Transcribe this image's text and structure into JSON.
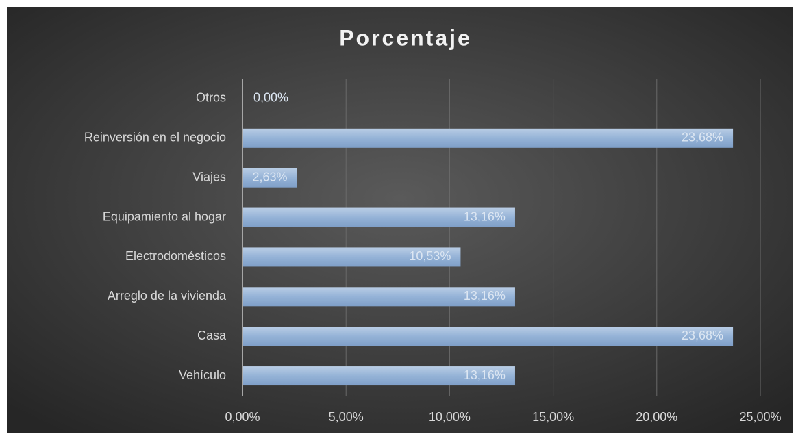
{
  "chart_data": {
    "type": "bar",
    "orientation": "horizontal",
    "title": "Porcentaje",
    "categories": [
      "Otros",
      "Reinversión en el negocio",
      "Viajes",
      "Equipamiento al hogar",
      "Electrodomésticos",
      "Arreglo de la vivienda",
      "Casa",
      "Vehículo"
    ],
    "values": [
      0,
      23.68,
      2.63,
      13.16,
      10.53,
      13.16,
      23.68,
      13.16
    ],
    "value_labels": [
      "0,00%",
      "23,68%",
      "2,63%",
      "13,16%",
      "10,53%",
      "13,16%",
      "23,68%",
      "13,16%"
    ],
    "color": "#95b3d7",
    "xlim": [
      0,
      25
    ],
    "xticks": [
      {
        "value": 0,
        "label": "0,00%"
      },
      {
        "value": 5,
        "label": "5,00%"
      },
      {
        "value": 10,
        "label": "10,00%"
      },
      {
        "value": 15,
        "label": "15,00%"
      },
      {
        "value": 20,
        "label": "20,00%"
      },
      {
        "value": 25,
        "label": "25,00%"
      }
    ],
    "grid": true
  }
}
